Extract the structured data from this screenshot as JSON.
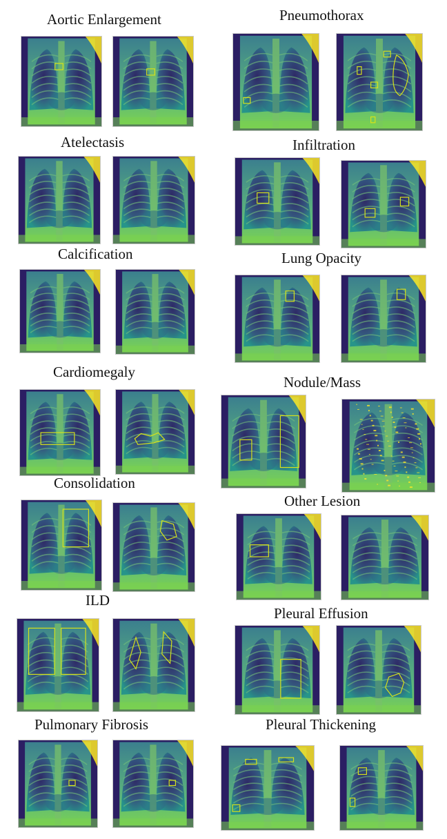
{
  "colors": {
    "viridis_dark": "#2b1e63",
    "viridis_mid": "#21908c",
    "viridis_light": "#7ad151",
    "viridis_yellow": "#fde725",
    "bbox": "#d8e219"
  },
  "left_column": [
    {
      "title": "Aortic Enlargement"
    },
    {
      "title": "Atelectasis"
    },
    {
      "title": "Calcification"
    },
    {
      "title": "Cardiomegaly"
    },
    {
      "title": "Consolidation"
    },
    {
      "title": "ILD"
    },
    {
      "title": "Pulmonary Fibrosis"
    }
  ],
  "right_column": [
    {
      "title": "Pneumothorax"
    },
    {
      "title": "Infiltration"
    },
    {
      "title": "Lung Opacity"
    },
    {
      "title": "Nodule/Mass"
    },
    {
      "title": "Other Lesion"
    },
    {
      "title": "Pleural Effusion"
    },
    {
      "title": "Pleural Thickening"
    }
  ]
}
